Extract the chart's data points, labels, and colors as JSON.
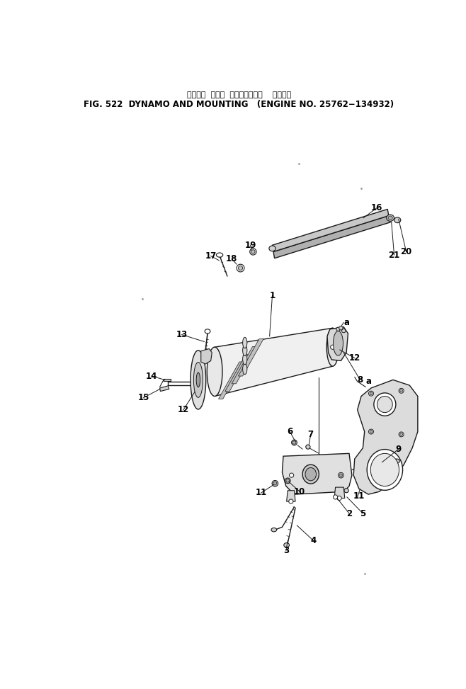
{
  "title_japanese": "ダイナモ  および  マウンティング    適用号機",
  "title_english": "FIG. 522  DYNAMO AND MOUNTING   (ENGINE NO. 25762−134932)",
  "bg_color": "#ffffff",
  "line_color": "#1a1a1a",
  "fig_width": 6.58,
  "fig_height": 9.73,
  "dpi": 100
}
